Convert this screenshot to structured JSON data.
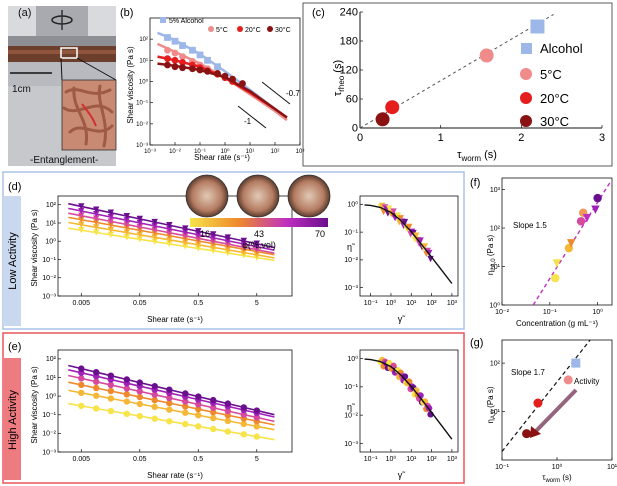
{
  "panels": {
    "a": {
      "label": "(a)",
      "scale_bar": "1cm",
      "inset_caption": "-Entanglement-"
    },
    "d": {
      "label": "(d)",
      "side_label": "Low Activity",
      "phi_ticks": [
        "16",
        "43",
        "70"
      ],
      "phi_label": "φ(%,vol)"
    },
    "e": {
      "label": "(e)",
      "side_label": "High Activity"
    }
  },
  "colors": {
    "alcohol": "#9db8e8",
    "t5": "#f08b8b",
    "t20": "#e51d1d",
    "t30": "#8b1212",
    "gradient": [
      "#f7e34a",
      "#f5b836",
      "#ee8a2c",
      "#d6499d",
      "#a020b8",
      "#6a0f8e"
    ],
    "low_box": "#a9c4e8",
    "high_box": "#e8555a",
    "low_tab": "#c9d8ee",
    "high_tab": "#ee7b80",
    "dashed_fit": "#c030c0"
  },
  "chart_data": [
    {
      "id": "b",
      "label": "(b)",
      "type": "line",
      "xscale": "log",
      "yscale": "log",
      "xlabel": "Shear rate (s⁻¹)",
      "ylabel": "Shear viscosity (Pa s)",
      "xlim": [
        0.001,
        1000
      ],
      "ylim": [
        0.001,
        1000
      ],
      "xticks": [
        "10⁻³",
        "10⁻²",
        "10⁻¹",
        "10⁰",
        "10¹",
        "10²",
        "10³"
      ],
      "yticks": [
        "10⁻³",
        "10⁻²",
        "10⁻¹",
        "10⁰",
        "10¹",
        "10²"
      ],
      "annotations": [
        "-0.7",
        "-1"
      ],
      "series": [
        {
          "name": "5% Alcohol",
          "color": "#9db8e8",
          "marker": "square",
          "points": [
            [
              0.005,
              120
            ],
            [
              0.01,
              80
            ],
            [
              0.02,
              50
            ],
            [
              0.05,
              30
            ],
            [
              0.1,
              18
            ],
            [
              0.2,
              10
            ],
            [
              0.5,
              5
            ]
          ],
          "fit": [
            [
              0.002,
              200
            ],
            [
              0.01,
              90
            ],
            [
              0.1,
              20
            ],
            [
              1,
              3
            ],
            [
              10,
              0.4
            ],
            [
              100,
              0.05
            ],
            [
              300,
              0.02
            ]
          ]
        },
        {
          "name": "5°C",
          "color": "#f08b8b",
          "marker": "circle",
          "points": [
            [
              0.005,
              30
            ],
            [
              0.01,
              22
            ],
            [
              0.02,
              15
            ],
            [
              0.05,
              9
            ],
            [
              0.1,
              6
            ],
            [
              0.2,
              4
            ]
          ],
          "fit": [
            [
              0.002,
              60
            ],
            [
              0.01,
              25
            ],
            [
              0.1,
              7
            ],
            [
              1,
              1.5
            ],
            [
              10,
              0.25
            ],
            [
              100,
              0.04
            ],
            [
              300,
              0.015
            ]
          ]
        },
        {
          "name": "20°C",
          "color": "#e51d1d",
          "marker": "circle",
          "points": [
            [
              0.005,
              12
            ],
            [
              0.01,
              10
            ],
            [
              0.02,
              8
            ],
            [
              0.05,
              6
            ],
            [
              0.1,
              4.5
            ],
            [
              0.2,
              3.2
            ],
            [
              0.5,
              2.2
            ],
            [
              1,
              1.5
            ],
            [
              2,
              1
            ]
          ],
          "fit": [
            [
              0.002,
              15
            ],
            [
              0.01,
              10
            ],
            [
              0.1,
              5
            ],
            [
              1,
              1.5
            ],
            [
              10,
              0.3
            ],
            [
              100,
              0.05
            ],
            [
              300,
              0.02
            ]
          ]
        },
        {
          "name": "30°C",
          "color": "#8b1212",
          "marker": "circle",
          "points": [
            [
              0.005,
              6
            ],
            [
              0.01,
              5
            ],
            [
              0.02,
              4.5
            ],
            [
              0.05,
              4
            ],
            [
              0.1,
              3.5
            ],
            [
              0.2,
              3
            ],
            [
              0.5,
              2.4
            ],
            [
              1,
              1.8
            ],
            [
              2,
              1.3
            ],
            [
              5,
              0.8
            ]
          ],
          "fit": [
            [
              0.002,
              7
            ],
            [
              0.01,
              5.5
            ],
            [
              0.1,
              3.5
            ],
            [
              1,
              1.6
            ],
            [
              10,
              0.35
            ],
            [
              100,
              0.05
            ],
            [
              300,
              0.02
            ]
          ]
        }
      ]
    },
    {
      "id": "c",
      "label": "(c)",
      "type": "scatter",
      "xlabel_main": "τ",
      "xlabel_sub": "worm",
      "xlabel_unit": " (s)",
      "ylabel_main": "τ",
      "ylabel_sub": "rheo",
      "ylabel_unit": " (s)",
      "xlim": [
        0,
        3
      ],
      "ylim": [
        0,
        240
      ],
      "xticks": [
        "0",
        "1",
        "2",
        "3"
      ],
      "yticks": [
        "0",
        "60",
        "120",
        "180",
        "240"
      ],
      "fit_line": [
        [
          0,
          0
        ],
        [
          2.4,
          235
        ]
      ],
      "series": [
        {
          "name": "Alcohol",
          "color": "#9db8e8",
          "marker": "square",
          "x": 2.2,
          "y": 210
        },
        {
          "name": "5°C",
          "color": "#f08b8b",
          "marker": "circle",
          "x": 1.57,
          "y": 150
        },
        {
          "name": "20°C",
          "color": "#e51d1d",
          "marker": "circle",
          "x": 0.4,
          "y": 43
        },
        {
          "name": "30°C",
          "color": "#8b1212",
          "marker": "circle",
          "x": 0.28,
          "y": 18
        }
      ]
    },
    {
      "id": "d-left",
      "type": "line",
      "xscale": "log",
      "yscale": "log",
      "xlabel": "Shear rate (s⁻¹)",
      "ylabel": "Shear viscosity (Pa s)",
      "xlim": [
        0.002,
        20
      ],
      "ylim": [
        0.001,
        300
      ],
      "xticks": [
        "0.005",
        "0.05",
        "0.5",
        "5"
      ],
      "xtick_values": [
        0.005,
        0.05,
        0.5,
        5
      ],
      "yticks": [
        "10⁻³",
        "10⁻²",
        "10⁻¹",
        "10⁰",
        "10¹",
        "10²"
      ],
      "marker": "triangle",
      "series": [
        {
          "color": "#f7e34a",
          "a": 4,
          "n": -0.5
        },
        {
          "color": "#f5b836",
          "a": 8,
          "n": -0.55
        },
        {
          "color": "#ee8a2c",
          "a": 15,
          "n": -0.58
        },
        {
          "color": "#d6499d",
          "a": 25,
          "n": -0.62
        },
        {
          "color": "#a020b8",
          "a": 45,
          "n": -0.65
        },
        {
          "color": "#6a0f8e",
          "a": 80,
          "n": -0.68
        }
      ]
    },
    {
      "id": "d-right",
      "type": "scatter",
      "xscale": "log",
      "yscale": "log",
      "xlabel": "γ̃",
      "ylabel": "η̃",
      "xlim": [
        0.03,
        2000
      ],
      "ylim": [
        0.0005,
        2
      ],
      "xticks": [
        "10⁻¹",
        "10⁰",
        "10¹",
        "10²",
        "10³"
      ],
      "yticks": [
        "10⁻³",
        "10⁻²",
        "10⁻¹",
        "10⁰"
      ]
    },
    {
      "id": "e-left",
      "type": "line",
      "xscale": "log",
      "yscale": "log",
      "xlabel": "Shear rate (s⁻¹)",
      "ylabel": "Shear viscosity (Pa s)",
      "xlim": [
        0.002,
        20
      ],
      "ylim": [
        0.001,
        300
      ],
      "xticks": [
        "0.005",
        "0.05",
        "0.5",
        "5"
      ],
      "xtick_values": [
        0.005,
        0.05,
        0.5,
        5
      ],
      "yticks": [
        "10⁻³",
        "10⁻²",
        "10⁻¹",
        "10⁰",
        "10¹",
        "10²"
      ],
      "marker": "circle",
      "series": [
        {
          "color": "#f7e34a",
          "a": 0.3,
          "n": -0.55
        },
        {
          "color": "#f5b836",
          "a": 1.5,
          "n": -0.6
        },
        {
          "color": "#ee8a2c",
          "a": 4,
          "n": -0.65
        },
        {
          "color": "#d6499d",
          "a": 9,
          "n": -0.7
        },
        {
          "color": "#a020b8",
          "a": 18,
          "n": -0.72
        },
        {
          "color": "#6a0f8e",
          "a": 30,
          "n": -0.75
        }
      ]
    },
    {
      "id": "e-right",
      "type": "scatter",
      "xscale": "log",
      "yscale": "log",
      "xlabel": "γ̃",
      "ylabel": "η̃",
      "xlim": [
        0.03,
        2000
      ],
      "ylim": [
        0.0005,
        2
      ],
      "xticks": [
        "10⁻¹",
        "10⁰",
        "10¹",
        "10²",
        "10³"
      ],
      "yticks": [
        "10⁻³",
        "10⁻²",
        "10⁻¹",
        "10⁰"
      ]
    },
    {
      "id": "f",
      "label": "(f)",
      "type": "scatter",
      "xscale": "log",
      "yscale": "log",
      "xlabel": "Concentration (g mL⁻¹)",
      "ylabel_main": "η",
      "ylabel_sub": "LA,0",
      "ylabel_unit": " (Pa s)",
      "xlim": [
        0.01,
        2
      ],
      "ylim": [
        1,
        2000
      ],
      "xticks": [
        "10⁻²",
        "10⁻¹",
        "10⁰"
      ],
      "yticks": [
        "10⁰",
        "10¹",
        "10²",
        "10³"
      ],
      "annotation": "Slope 1.5",
      "fit_line": [
        [
          0.045,
          1
        ],
        [
          1.8,
          1500
        ]
      ],
      "points": [
        {
          "x": 0.13,
          "y": 5,
          "color": "#f7e34a",
          "marker": "circle"
        },
        {
          "x": 0.14,
          "y": 12,
          "color": "#f5e24a",
          "marker": "triangle"
        },
        {
          "x": 0.25,
          "y": 30,
          "color": "#f5b836",
          "marker": "circle"
        },
        {
          "x": 0.28,
          "y": 40,
          "color": "#ee8a2c",
          "marker": "triangle"
        },
        {
          "x": 0.45,
          "y": 150,
          "color": "#d6499d",
          "marker": "circle"
        },
        {
          "x": 0.5,
          "y": 250,
          "color": "#f29a5a",
          "marker": "circle"
        },
        {
          "x": 0.6,
          "y": 180,
          "color": "#c030c0",
          "marker": "triangle"
        },
        {
          "x": 0.9,
          "y": 300,
          "color": "#a020b8",
          "marker": "triangle"
        },
        {
          "x": 1.0,
          "y": 600,
          "color": "#6a0f8e",
          "marker": "circle"
        }
      ]
    },
    {
      "id": "g",
      "label": "(g)",
      "type": "scatter",
      "xscale": "log",
      "yscale": "log",
      "xlabel_main": "τ",
      "xlabel_sub": "worm",
      "xlabel_unit": " (s)",
      "ylabel_main": "η",
      "ylabel_sub": "A,0",
      "ylabel_unit": " (Pa s)",
      "xlim": [
        0.1,
        10
      ],
      "ylim": [
        1,
        300
      ],
      "xticks": [
        "10⁻¹",
        "10⁰",
        "10¹"
      ],
      "yticks": [
        "10¹",
        "10²"
      ],
      "annotations": [
        "Slope 1.7",
        "Activity"
      ],
      "fit_line": [
        [
          0.1,
          1.5
        ],
        [
          4,
          300
        ]
      ],
      "points": [
        {
          "x": 2.2,
          "y": 100,
          "color": "#9db8e8",
          "marker": "square"
        },
        {
          "x": 1.6,
          "y": 45,
          "color": "#f08b8b",
          "marker": "circle"
        },
        {
          "x": 0.45,
          "y": 15,
          "color": "#e51d1d",
          "marker": "circle"
        },
        {
          "x": 0.28,
          "y": 3.5,
          "color": "#8b1212",
          "marker": "circle"
        }
      ]
    }
  ]
}
